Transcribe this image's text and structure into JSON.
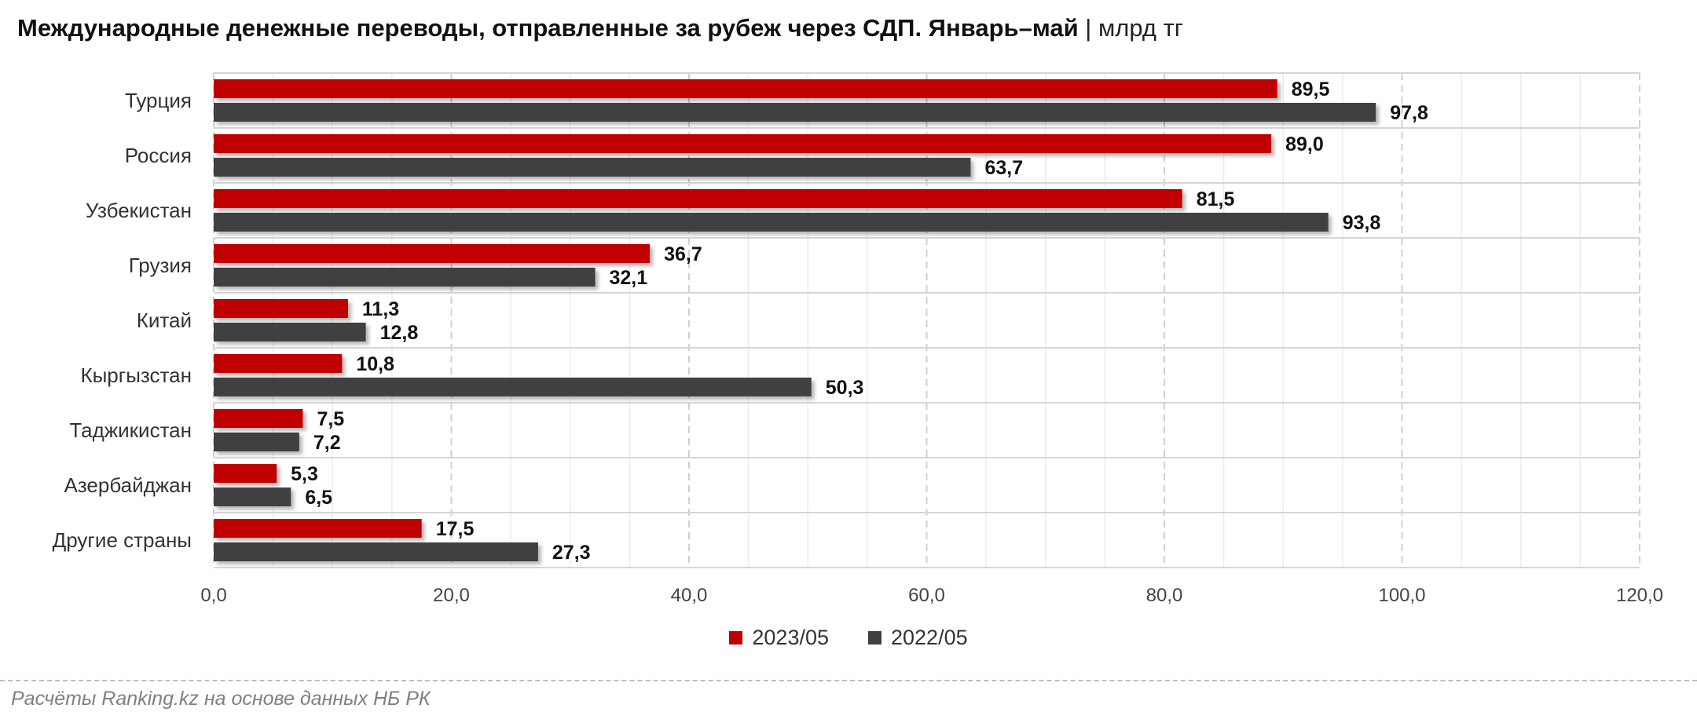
{
  "chart_data": {
    "type": "bar",
    "orientation": "horizontal",
    "title": "Международные денежные переводы, отправленные за рубеж через СДП. Январь–май",
    "title_separator": "|",
    "unit": "млрд тг",
    "categories": [
      "Турция",
      "Россия",
      "Узбекистан",
      "Грузия",
      "Китай",
      "Кыргызстан",
      "Таджикистан",
      "Азербайджан",
      "Другие страны"
    ],
    "series": [
      {
        "name": "2023/05",
        "color": "#c00000",
        "values": [
          89.5,
          89.0,
          81.5,
          36.7,
          11.3,
          10.8,
          7.5,
          5.3,
          17.5
        ],
        "labels": [
          "89,5",
          "89,0",
          "81,5",
          "36,7",
          "11,3",
          "10,8",
          "7,5",
          "5,3",
          "17,5"
        ]
      },
      {
        "name": "2022/05",
        "color": "#404040",
        "values": [
          97.8,
          63.7,
          93.8,
          32.1,
          12.8,
          50.3,
          7.2,
          6.5,
          27.3
        ],
        "labels": [
          "97,8",
          "63,7",
          "93,8",
          "32,1",
          "12,8",
          "50,3",
          "7,2",
          "6,5",
          "27,3"
        ]
      }
    ],
    "xlim": [
      0,
      120
    ],
    "x_ticks": [
      0,
      20,
      40,
      60,
      80,
      100,
      120
    ],
    "x_tick_labels": [
      "0,0",
      "20,0",
      "40,0",
      "60,0",
      "80,0",
      "100,0",
      "120,0"
    ],
    "grid": true,
    "legend_position": "bottom"
  },
  "source_note": "Расчёты Ranking.kz на основе данных НБ РК"
}
